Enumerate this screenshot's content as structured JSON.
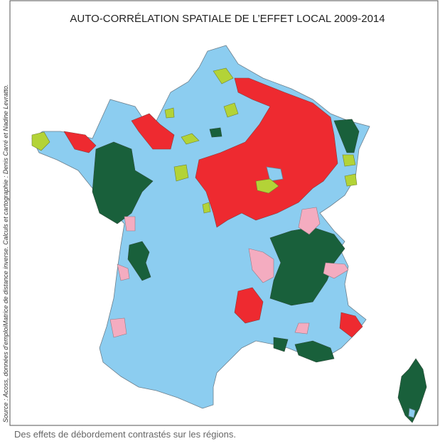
{
  "title": "AUTO-CORRÉLATION SPATIALE DE L’EFFET LOCAL 2009-2014",
  "source": "Source : Acoss, données d’emploiMatrice de distance inverse. Calculs et cartographie : Denis Carré et Nadine Levratto.",
  "caption": "Des effets de débordement contrastés sur les régions."
}
